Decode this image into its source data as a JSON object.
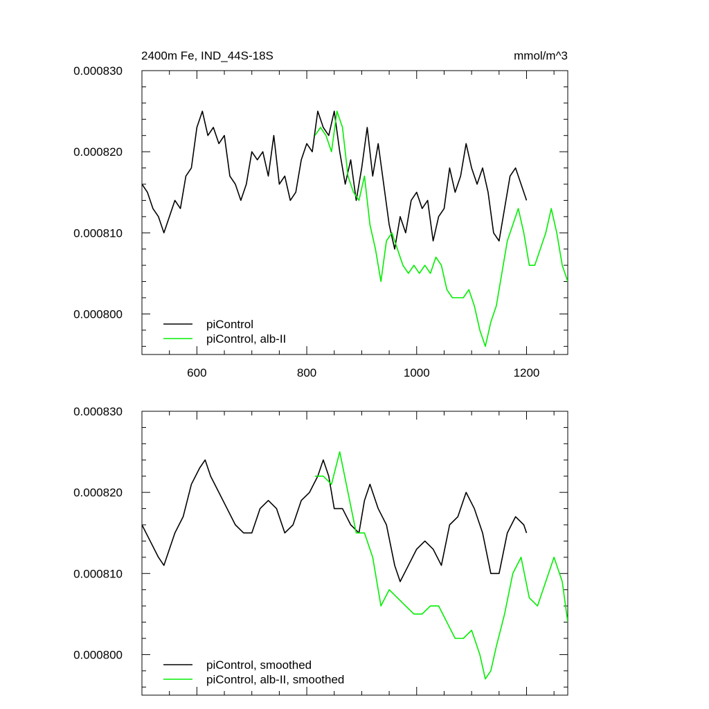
{
  "figure": {
    "title_left": "2400m Fe, IND_44S-18S",
    "title_right": "mmol/m^3"
  },
  "colors": {
    "picontrol": "#000000",
    "alb_ii": "#00ee00"
  },
  "chart_data": [
    {
      "type": "line",
      "title": "2400m Fe, IND_44S-18S",
      "units": "mmol/m^3",
      "xlim": [
        500,
        1275
      ],
      "ylim": [
        0.000795,
        0.00083
      ],
      "x_ticks": [
        600,
        800,
        1000,
        1200
      ],
      "x_tick_labels": [
        "600",
        "800",
        "1000",
        "1200"
      ],
      "y_ticks": [
        0.0008,
        0.00081,
        0.00082,
        0.00083
      ],
      "y_tick_labels": [
        "0.000800",
        "0.000810",
        "0.000820",
        "0.000830"
      ],
      "legend": "bottom-left",
      "legend_labels": [
        "piControl",
        "piControl, alb-II"
      ],
      "series": [
        {
          "name": "piControl",
          "x": [
            500,
            510,
            520,
            530,
            540,
            550,
            560,
            570,
            580,
            590,
            600,
            610,
            620,
            630,
            640,
            650,
            660,
            670,
            680,
            690,
            700,
            710,
            720,
            730,
            740,
            750,
            760,
            770,
            780,
            790,
            800,
            810,
            820,
            830,
            840,
            850,
            860,
            870,
            880,
            890,
            900,
            910,
            920,
            930,
            940,
            950,
            960,
            970,
            980,
            990,
            1000,
            1010,
            1020,
            1030,
            1040,
            1050,
            1060,
            1070,
            1080,
            1090,
            1100,
            1110,
            1120,
            1130,
            1140,
            1150,
            1160,
            1170,
            1180,
            1190,
            1200
          ],
          "y": [
            0.000816,
            0.000815,
            0.000813,
            0.000812,
            0.00081,
            0.000812,
            0.000814,
            0.000813,
            0.000817,
            0.000818,
            0.000823,
            0.000825,
            0.000822,
            0.000823,
            0.000821,
            0.000822,
            0.000817,
            0.000816,
            0.000814,
            0.000816,
            0.00082,
            0.000819,
            0.00082,
            0.000817,
            0.000822,
            0.000816,
            0.000817,
            0.000814,
            0.000815,
            0.000819,
            0.000821,
            0.00082,
            0.000825,
            0.000823,
            0.000822,
            0.000825,
            0.00082,
            0.000816,
            0.000819,
            0.000814,
            0.000818,
            0.000823,
            0.000817,
            0.000821,
            0.000816,
            0.000811,
            0.000808,
            0.000812,
            0.00081,
            0.000814,
            0.000815,
            0.000813,
            0.000814,
            0.000809,
            0.000812,
            0.000813,
            0.000818,
            0.000815,
            0.000817,
            0.000821,
            0.000818,
            0.000816,
            0.000818,
            0.000815,
            0.00081,
            0.000809,
            0.000813,
            0.000817,
            0.000818,
            0.000816,
            0.000814
          ]
        },
        {
          "name": "piControl, alb-II",
          "x": [
            815,
            825,
            835,
            845,
            855,
            865,
            875,
            885,
            895,
            905,
            915,
            925,
            935,
            945,
            955,
            965,
            975,
            985,
            995,
            1005,
            1015,
            1025,
            1035,
            1045,
            1055,
            1065,
            1075,
            1085,
            1095,
            1105,
            1115,
            1125,
            1135,
            1145,
            1155,
            1165,
            1175,
            1185,
            1195,
            1205,
            1215,
            1225,
            1235,
            1245,
            1255,
            1265,
            1275
          ],
          "y": [
            0.000822,
            0.000823,
            0.000822,
            0.00082,
            0.000825,
            0.000823,
            0.000817,
            0.000815,
            0.000814,
            0.000817,
            0.000811,
            0.000808,
            0.000804,
            0.000809,
            0.00081,
            0.000808,
            0.000806,
            0.000805,
            0.000806,
            0.000805,
            0.000806,
            0.000805,
            0.000807,
            0.000806,
            0.000803,
            0.000802,
            0.000802,
            0.000802,
            0.000803,
            0.000801,
            0.000798,
            0.000796,
            0.000799,
            0.000801,
            0.000805,
            0.000809,
            0.000811,
            0.000813,
            0.00081,
            0.000806,
            0.000806,
            0.000808,
            0.00081,
            0.000813,
            0.00081,
            0.000806,
            0.000804
          ]
        }
      ]
    },
    {
      "type": "line",
      "xlim": [
        500,
        1275
      ],
      "ylim": [
        0.000795,
        0.00083
      ],
      "x_ticks": [
        600,
        800,
        1000,
        1200
      ],
      "y_ticks": [
        0.0008,
        0.00081,
        0.00082,
        0.00083
      ],
      "y_tick_labels": [
        "0.000800",
        "0.000810",
        "0.000820",
        "0.000830"
      ],
      "legend": "bottom-left",
      "legend_labels": [
        "piControl, smoothed",
        "piControl, alb-II, smoothed"
      ],
      "series": [
        {
          "name": "piControl, smoothed",
          "x": [
            500,
            515,
            530,
            540,
            550,
            560,
            575,
            590,
            605,
            615,
            625,
            640,
            655,
            670,
            685,
            700,
            715,
            730,
            745,
            760,
            775,
            790,
            805,
            820,
            830,
            840,
            850,
            865,
            880,
            895,
            905,
            915,
            930,
            945,
            960,
            970,
            985,
            1000,
            1015,
            1030,
            1045,
            1060,
            1075,
            1090,
            1105,
            1120,
            1135,
            1150,
            1165,
            1180,
            1195,
            1200
          ],
          "y": [
            0.000816,
            0.000814,
            0.000812,
            0.000811,
            0.000813,
            0.000815,
            0.000817,
            0.000821,
            0.000823,
            0.000824,
            0.000822,
            0.00082,
            0.000818,
            0.000816,
            0.000815,
            0.000815,
            0.000818,
            0.000819,
            0.000818,
            0.000815,
            0.000816,
            0.000819,
            0.00082,
            0.000822,
            0.000824,
            0.000822,
            0.000818,
            0.000818,
            0.000816,
            0.000815,
            0.000819,
            0.000821,
            0.000818,
            0.000816,
            0.000811,
            0.000809,
            0.000811,
            0.000813,
            0.000814,
            0.000813,
            0.000811,
            0.000816,
            0.000817,
            0.00082,
            0.000818,
            0.000815,
            0.00081,
            0.00081,
            0.000815,
            0.000817,
            0.000816,
            0.000815
          ]
        },
        {
          "name": "piControl, alb-II, smoothed",
          "x": [
            815,
            830,
            845,
            860,
            875,
            890,
            905,
            920,
            935,
            950,
            965,
            980,
            995,
            1010,
            1025,
            1040,
            1055,
            1070,
            1085,
            1100,
            1115,
            1125,
            1135,
            1145,
            1160,
            1175,
            1190,
            1205,
            1220,
            1235,
            1250,
            1265,
            1275
          ],
          "y": [
            0.000822,
            0.000822,
            0.000821,
            0.000825,
            0.00082,
            0.000815,
            0.000815,
            0.000812,
            0.000806,
            0.000808,
            0.000807,
            0.000806,
            0.000805,
            0.000805,
            0.000806,
            0.000806,
            0.000804,
            0.000802,
            0.000802,
            0.000803,
            0.0008,
            0.000797,
            0.000798,
            0.000801,
            0.000805,
            0.00081,
            0.000812,
            0.000807,
            0.000806,
            0.000809,
            0.000812,
            0.000809,
            0.000804
          ]
        }
      ]
    }
  ]
}
